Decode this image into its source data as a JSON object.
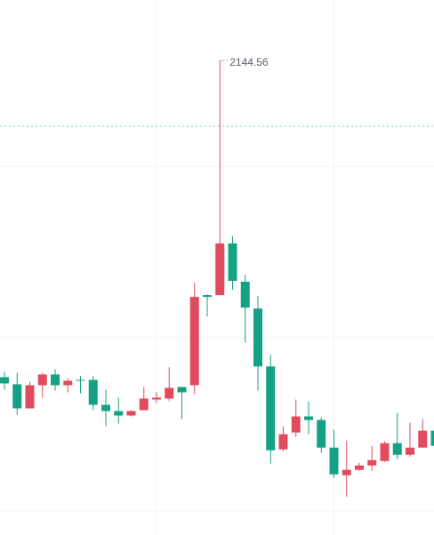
{
  "chart_data": {
    "type": "candlestick",
    "open": [
      1434,
      1418,
      1364,
      1416,
      1440,
      1416,
      1428,
      1428,
      1372,
      1358,
      1348,
      1360,
      1384,
      1386,
      1412,
      1416,
      1618,
      1618,
      1734,
      1648,
      1588,
      1458,
      1272,
      1310,
      1346,
      1338,
      1276,
      1214,
      1226,
      1236,
      1246,
      1286,
      1260,
      1276,
      1314
    ],
    "high": [
      1446,
      1444,
      1424,
      1444,
      1452,
      1432,
      1436,
      1436,
      1406,
      1388,
      1360,
      1412,
      1400,
      1456,
      1412,
      1646,
      1620,
      2144.56,
      1750,
      1664,
      1616,
      1484,
      1324,
      1384,
      1380,
      1344,
      1316,
      1292,
      1242,
      1280,
      1290,
      1354,
      1332,
      1340,
      1314
    ],
    "low": [
      1406,
      1350,
      1364,
      1388,
      1404,
      1400,
      1398,
      1360,
      1324,
      1330,
      1346,
      1360,
      1376,
      1380,
      1340,
      1396,
      1570,
      1618,
      1630,
      1512,
      1404,
      1240,
      1268,
      1300,
      1306,
      1264,
      1208,
      1166,
      1224,
      1224,
      1244,
      1250,
      1256,
      1276,
      1280
    ],
    "close": [
      1420,
      1364,
      1416,
      1440,
      1416,
      1426,
      1426,
      1372,
      1358,
      1348,
      1358,
      1386,
      1388,
      1410,
      1400,
      1614,
      1614,
      1734,
      1650,
      1590,
      1458,
      1270,
      1306,
      1346,
      1338,
      1276,
      1216,
      1226,
      1236,
      1248,
      1286,
      1260,
      1276,
      1314,
      1280
    ],
    "up_color": "#e04b5d",
    "down_color": "#14a184",
    "ylim": [
      1080,
      2280
    ]
  }
}
